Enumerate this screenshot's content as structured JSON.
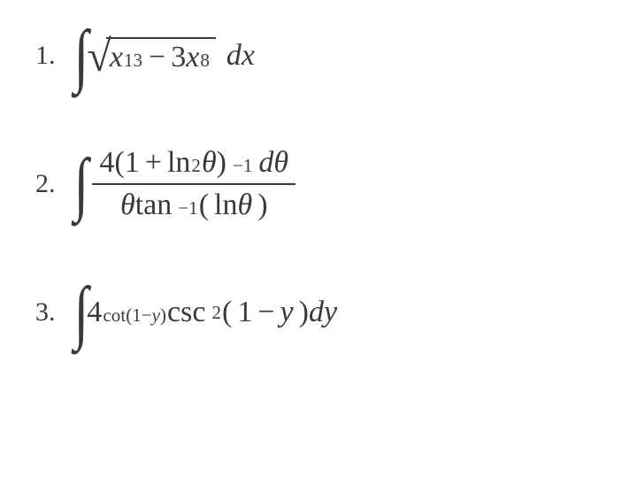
{
  "background_color": "#ffffff",
  "text_color": "#3a3a3a",
  "font_family": "Times New Roman",
  "base_fontsize": 34,
  "number_fontsize": 30,
  "integral_sign_fontsize": 80,
  "problems": [
    {
      "number": "1.",
      "type": "integral-sqrt",
      "sqrt_terms": {
        "t1_var": "x",
        "t1_exp": "13",
        "op": "−",
        "t2_coef": "3",
        "t2_var": "x",
        "t2_exp": "8"
      },
      "differential": "dx"
    },
    {
      "number": "2.",
      "type": "integral-fraction",
      "numerator": {
        "coef": "4",
        "lp": "(",
        "inner_a": "1",
        "inner_op": "+",
        "inner_fn": "ln",
        "inner_exp": "2",
        "inner_arg": "θ",
        "rp": ")",
        "outer_exp": "−1",
        "dvar": "dθ"
      },
      "denominator": {
        "v1": "θ",
        "fn": "tan",
        "fn_exp": "−1",
        "lp": "(",
        "inner_fn": "ln",
        "inner_arg": "θ",
        "rp": ")"
      }
    },
    {
      "number": "3.",
      "type": "integral-exp",
      "base": "4",
      "exponent": {
        "fn": "cot",
        "lp": "(",
        "a": "1",
        "op": "−",
        "b": "y",
        "rp": ")"
      },
      "tail": {
        "fn": "csc",
        "fn_exp": "2",
        "lp": "(",
        "a": "1",
        "op": "−",
        "b": "y",
        "rp": ")"
      },
      "differential": "dy"
    }
  ]
}
